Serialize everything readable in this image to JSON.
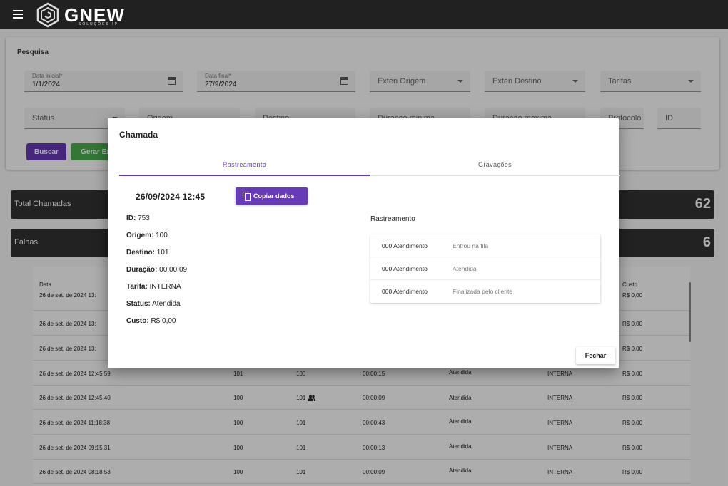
{
  "app": {
    "logo_text": "GNEW",
    "logo_subtext": "SOLUÇÕES IP",
    "menu_icon": "menu-icon"
  },
  "search": {
    "title": "Pesquisa",
    "data_inicial": {
      "label": "Data inicial*",
      "value": "1/1/2024"
    },
    "data_final": {
      "label": "Data final*",
      "value": "27/9/2024"
    },
    "exten_origem": "Exten Origem",
    "exten_destino": "Exten Destino",
    "tarifas": "Tarifas",
    "status": "Status",
    "origem": "Origem",
    "destino": "Destino",
    "duracao_minima": "Duracao minima",
    "duracao_maxima": "Duracao maxima",
    "protocolo": "Protocolo",
    "id": "ID",
    "buscar": "Buscar",
    "gerar": "Gerar Ex"
  },
  "stats": {
    "total": {
      "label": "Total Chamadas",
      "value": "62"
    },
    "falhas": {
      "label": "Falhas",
      "value": "6"
    }
  },
  "table": {
    "columns": {
      "data": "Data",
      "custo": "Custo"
    },
    "rows": [
      {
        "date": "26 de set. de 2024 13:",
        "origem": "",
        "destino": "",
        "duracao": "",
        "status": "",
        "tarifa": "",
        "custo": "R$ 0,00"
      },
      {
        "date": "26 de set. de 2024 13:",
        "origem": "",
        "destino": "",
        "duracao": "",
        "status": "",
        "tarifa": "",
        "custo": "R$ 0,00"
      },
      {
        "date": "26 de set. de 2024 12:45:59",
        "origem": "101",
        "destino": "100",
        "duracao": "00:00:15",
        "status": "Atendida",
        "tarifa": "INTERNA",
        "custo": "R$ 0,00"
      },
      {
        "date": "26 de set. de 2024 12:45:40",
        "origem": "100",
        "destino": "101",
        "duracao": "00:00:09",
        "status": "Atendida",
        "tarifa": "INTERNA",
        "custo": "R$ 0,00"
      },
      {
        "date": "26 de set. de 2024 11:18:38",
        "origem": "100",
        "destino": "101",
        "duracao": "00:00:43",
        "status": "Atendida",
        "tarifa": "INTERNA",
        "custo": "R$ 0,00"
      },
      {
        "date": "26 de set. de 2024 09:15:31",
        "origem": "100",
        "destino": "101",
        "duracao": "00:00:13",
        "status": "Atendida",
        "tarifa": "INTERNA",
        "custo": "R$ 0,00"
      },
      {
        "date": "26 de set. de 2024 08:18:53",
        "origem": "100",
        "destino": "101",
        "duracao": "00:00:09",
        "status": "Atendida",
        "tarifa": "INTERNA",
        "custo": "R$ 0,00"
      }
    ]
  },
  "dialog": {
    "title": "Chamada",
    "tabs": {
      "rastreamento": "Rastreamento",
      "gravacoes": "Gravações"
    },
    "datetime": "26/09/2024 12:45",
    "copy_button": "Copiar dados",
    "details": {
      "id": {
        "label": "ID:",
        "value": "753"
      },
      "origem": {
        "label": "Origem:",
        "value": "100"
      },
      "destino": {
        "label": "Destino:",
        "value": "101"
      },
      "duracao": {
        "label": "Duração:",
        "value": "00:00:09"
      },
      "tarifa": {
        "label": "Tarifa:",
        "value": "INTERNA"
      },
      "status": {
        "label": "Status:",
        "value": "Atendida"
      },
      "custo": {
        "label": "Custo:",
        "value": "R$ 0,00"
      }
    },
    "tracking_title": "Rastreamento",
    "tracking": [
      {
        "queue": "000 Atendimento",
        "event": "Entrou na fila"
      },
      {
        "queue": "000 Atendimento",
        "event": "Atendida"
      },
      {
        "queue": "000 Atendimento",
        "event": "Finalizada pelo cliente"
      }
    ],
    "close_button": "Fechar"
  }
}
